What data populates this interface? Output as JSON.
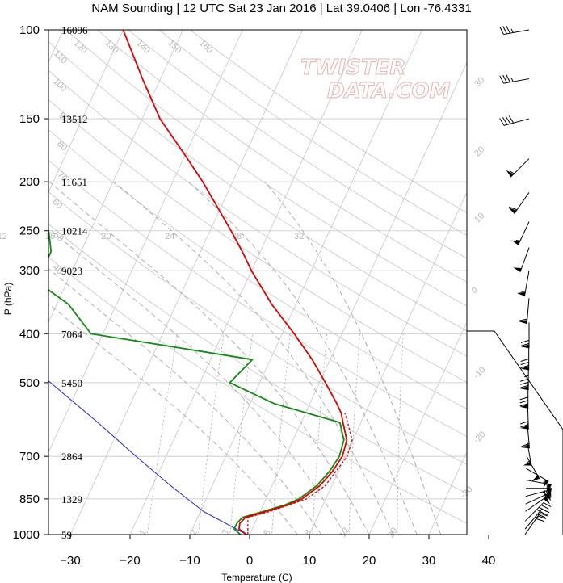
{
  "chart_data": {
    "type": "skew-t",
    "title": "NAM Sounding | 12 UTC Sat 23 Jan 2016 | Lat 39.0406 | Lon -76.4331",
    "xlabel": "Temperature (C)",
    "ylabel": "P (hPa)",
    "watermark": [
      "TWISTER",
      "DATA.COM"
    ],
    "pressure_ticks": [
      100,
      150,
      200,
      250,
      300,
      400,
      500,
      700,
      850,
      1000
    ],
    "temperature_ticks": [
      -30,
      -20,
      -10,
      0,
      10,
      20,
      30,
      40
    ],
    "heights_m": [
      {
        "p": 100,
        "label": "16096"
      },
      {
        "p": 150,
        "label": "13512"
      },
      {
        "p": 200,
        "label": "11651"
      },
      {
        "p": 250,
        "label": "10214"
      },
      {
        "p": 300,
        "label": "9023"
      },
      {
        "p": 400,
        "label": "7064"
      },
      {
        "p": 500,
        "label": "5450"
      },
      {
        "p": 700,
        "label": "2864"
      },
      {
        "p": 850,
        "label": "1329"
      },
      {
        "p": 1000,
        "label": "59"
      }
    ],
    "mixing_ratio_labels": [
      "1",
      "2",
      "3",
      "5",
      "8",
      "12",
      "20"
    ],
    "mixing_ratio_values": [
      1,
      2,
      3,
      5,
      8,
      12,
      20
    ],
    "moist_adiabat_labels": [
      "8",
      "12",
      "16",
      "20",
      "24",
      "28",
      "32"
    ],
    "moist_adiabat_values": [
      8,
      12,
      16,
      20,
      24,
      28,
      32
    ],
    "dry_adiabat_labels": [
      "40",
      "50",
      "60",
      "70",
      "80",
      "90",
      "100",
      "110",
      "120",
      "130",
      "140",
      "150",
      "160"
    ],
    "dry_adiabat_values": [
      40,
      50,
      60,
      70,
      80,
      90,
      100,
      110,
      120,
      130,
      140,
      150,
      160
    ],
    "isotherm_labels": [
      "30",
      "20",
      "10",
      "0",
      "-10",
      "-20",
      "-30"
    ],
    "temperature_profile": [
      {
        "p": 1000,
        "t": -0.5
      },
      {
        "p": 975,
        "t": -2.2
      },
      {
        "p": 950,
        "t": -2.5
      },
      {
        "p": 925,
        "t": -2.0
      },
      {
        "p": 900,
        "t": 1.0
      },
      {
        "p": 875,
        "t": 4.0
      },
      {
        "p": 850,
        "t": 6.0
      },
      {
        "p": 800,
        "t": 8.0
      },
      {
        "p": 750,
        "t": 9.0
      },
      {
        "p": 700,
        "t": 9.5
      },
      {
        "p": 650,
        "t": 9.0
      },
      {
        "p": 600,
        "t": 7.0
      },
      {
        "p": 575,
        "t": 6.0
      },
      {
        "p": 550,
        "t": 4.5
      },
      {
        "p": 500,
        "t": 1.0
      },
      {
        "p": 450,
        "t": -3.0
      },
      {
        "p": 400,
        "t": -8.0
      },
      {
        "p": 350,
        "t": -14.0
      },
      {
        "p": 300,
        "t": -20.0
      },
      {
        "p": 275,
        "t": -23.0
      },
      {
        "p": 250,
        "t": -26.5
      },
      {
        "p": 225,
        "t": -30.5
      },
      {
        "p": 200,
        "t": -35.0
      },
      {
        "p": 175,
        "t": -40.5
      },
      {
        "p": 150,
        "t": -47.0
      },
      {
        "p": 125,
        "t": -53.0
      },
      {
        "p": 100,
        "t": -60.0
      }
    ],
    "dewpoint_profile": [
      {
        "p": 1000,
        "t": -1.5
      },
      {
        "p": 975,
        "t": -3.0
      },
      {
        "p": 950,
        "t": -3.0
      },
      {
        "p": 925,
        "t": -2.5
      },
      {
        "p": 900,
        "t": 0.5
      },
      {
        "p": 875,
        "t": 3.5
      },
      {
        "p": 850,
        "t": 5.5
      },
      {
        "p": 800,
        "t": 7.5
      },
      {
        "p": 750,
        "t": 8.5
      },
      {
        "p": 700,
        "t": 9.0
      },
      {
        "p": 650,
        "t": 8.5
      },
      {
        "p": 600,
        "t": 6.5
      },
      {
        "p": 550,
        "t": -6.0
      },
      {
        "p": 500,
        "t": -15.0
      },
      {
        "p": 450,
        "t": -13.0
      },
      {
        "p": 400,
        "t": -42.0
      },
      {
        "p": 350,
        "t": -48.0
      },
      {
        "p": 325,
        "t": -53.0
      },
      {
        "p": 300,
        "t": -55.0
      },
      {
        "p": 275,
        "t": -55.0
      },
      {
        "p": 250,
        "t": -57.0
      },
      {
        "p": 200,
        "t": -65.0
      },
      {
        "p": 175,
        "t": -78.0
      },
      {
        "p": 150,
        "t": -77.0
      },
      {
        "p": 125,
        "t": -80.0
      },
      {
        "p": 100,
        "t": -85.0
      }
    ],
    "virtual_temperature_profile": [
      {
        "p": 1000,
        "t": -0.3
      },
      {
        "p": 925,
        "t": -1.6
      },
      {
        "p": 900,
        "t": 1.6
      },
      {
        "p": 850,
        "t": 6.8
      },
      {
        "p": 800,
        "t": 8.9
      },
      {
        "p": 700,
        "t": 10.3
      },
      {
        "p": 650,
        "t": 9.9
      },
      {
        "p": 600,
        "t": 7.8
      },
      {
        "p": 575,
        "t": 6.6
      }
    ],
    "parcel_profile": [
      {
        "p": 1000,
        "t": -0.5
      },
      {
        "p": 900,
        "t": -9.5
      },
      {
        "p": 800,
        "t": -17.0
      },
      {
        "p": 700,
        "t": -25.0
      },
      {
        "p": 600,
        "t": -34.0
      },
      {
        "p": 500,
        "t": -45.0
      },
      {
        "p": 400,
        "t": -58.0
      },
      {
        "p": 300,
        "t": -72.0
      },
      {
        "p": 250,
        "t": -78.0
      },
      {
        "p": 200,
        "t": -82.0
      },
      {
        "p": 150,
        "t": -88.0
      },
      {
        "p": 100,
        "t": -95.0
      }
    ],
    "wind_barbs": [
      {
        "p": 100,
        "speed_kt": 35,
        "dir_deg": 260
      },
      {
        "p": 125,
        "speed_kt": 35,
        "dir_deg": 260
      },
      {
        "p": 150,
        "speed_kt": 40,
        "dir_deg": 255
      },
      {
        "p": 180,
        "speed_kt": 55,
        "dir_deg": 225
      },
      {
        "p": 210,
        "speed_kt": 60,
        "dir_deg": 215
      },
      {
        "p": 240,
        "speed_kt": 55,
        "dir_deg": 205
      },
      {
        "p": 270,
        "speed_kt": 50,
        "dir_deg": 200
      },
      {
        "p": 300,
        "speed_kt": 55,
        "dir_deg": 190
      },
      {
        "p": 340,
        "speed_kt": 60,
        "dir_deg": 185
      },
      {
        "p": 380,
        "speed_kt": 70,
        "dir_deg": 180
      },
      {
        "p": 420,
        "speed_kt": 80,
        "dir_deg": 180
      },
      {
        "p": 460,
        "speed_kt": 85,
        "dir_deg": 180
      },
      {
        "p": 500,
        "speed_kt": 80,
        "dir_deg": 180
      },
      {
        "p": 550,
        "speed_kt": 70,
        "dir_deg": 178
      },
      {
        "p": 600,
        "speed_kt": 60,
        "dir_deg": 175
      },
      {
        "p": 650,
        "speed_kt": 55,
        "dir_deg": 170
      },
      {
        "p": 700,
        "speed_kt": 50,
        "dir_deg": 150
      },
      {
        "p": 740,
        "speed_kt": 55,
        "dir_deg": 120
      },
      {
        "p": 780,
        "speed_kt": 60,
        "dir_deg": 100
      },
      {
        "p": 810,
        "speed_kt": 70,
        "dir_deg": 90
      },
      {
        "p": 840,
        "speed_kt": 70,
        "dir_deg": 75
      },
      {
        "p": 870,
        "speed_kt": 55,
        "dir_deg": 65
      },
      {
        "p": 900,
        "speed_kt": 50,
        "dir_deg": 55
      },
      {
        "p": 940,
        "speed_kt": 40,
        "dir_deg": 45
      },
      {
        "p": 975,
        "speed_kt": 35,
        "dir_deg": 40
      },
      {
        "p": 1000,
        "speed_kt": 30,
        "dir_deg": 35
      }
    ],
    "series_colors": {
      "temperature": "#e00000",
      "dewpoint": "#138a13",
      "virtual_temperature": "#e00000",
      "parcel": "#2222dd",
      "grid": "#c6c6c6"
    }
  }
}
